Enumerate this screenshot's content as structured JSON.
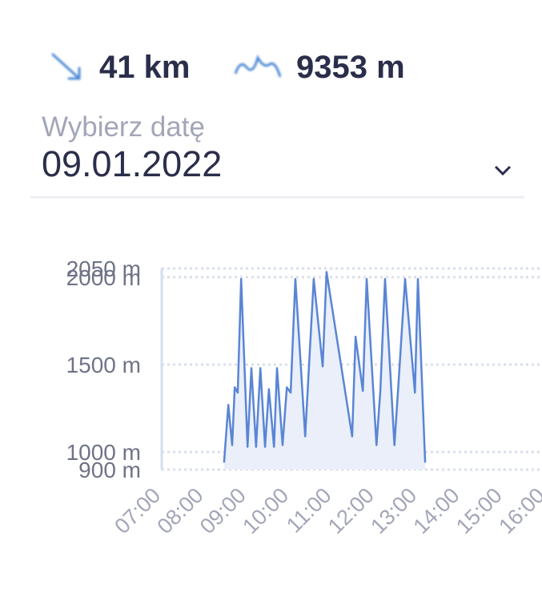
{
  "header": {
    "distance": "41 km",
    "elevation": "9353 m"
  },
  "date_picker": {
    "label": "Wybierz datę",
    "value": "09.01.2022"
  },
  "chart_data": {
    "type": "area",
    "x": [
      8.46,
      8.56,
      8.65,
      8.71,
      8.78,
      8.86,
      9.01,
      9.1,
      9.21,
      9.31,
      9.42,
      9.51,
      9.63,
      9.7,
      9.83,
      9.93,
      10.02,
      10.13,
      10.36,
      10.56,
      10.77,
      10.86,
      11.46,
      11.54,
      11.71,
      11.8,
      12.03,
      12.12,
      12.23,
      12.45,
      12.55,
      12.7,
      12.93,
      13.0,
      13.17
    ],
    "values": [
      940,
      1270,
      1040,
      1370,
      1340,
      1990,
      1030,
      1480,
      1030,
      1480,
      1030,
      1360,
      1030,
      1480,
      1040,
      1370,
      1340,
      1990,
      1090,
      1990,
      1490,
      2030,
      1090,
      1660,
      1350,
      1990,
      1040,
      1350,
      1990,
      1040,
      1410,
      1990,
      1340,
      1990,
      940
    ],
    "color": "#5a85d5",
    "fill_color": "#eaeff9",
    "xlim": [
      7,
      16
    ],
    "xticks": [
      {
        "value": 7,
        "label": "07:00"
      },
      {
        "value": 8,
        "label": "08:00"
      },
      {
        "value": 9,
        "label": "09:00"
      },
      {
        "value": 10,
        "label": "10:00"
      },
      {
        "value": 11,
        "label": "11:00"
      },
      {
        "value": 12,
        "label": "12:00"
      },
      {
        "value": 13,
        "label": "13:00"
      },
      {
        "value": 14,
        "label": "14:00"
      },
      {
        "value": 15,
        "label": "15:00"
      },
      {
        "value": 16,
        "label": "16:00"
      }
    ],
    "ylim": [
      900,
      2050
    ],
    "yticks": [
      {
        "value": 900,
        "label": "900 m"
      },
      {
        "value": 1000,
        "label": "1000 m"
      },
      {
        "value": 1500,
        "label": "1500 m"
      },
      {
        "value": 2000,
        "label": "2000 m"
      },
      {
        "value": 2050,
        "label": "2050 m"
      }
    ],
    "grid": true
  }
}
